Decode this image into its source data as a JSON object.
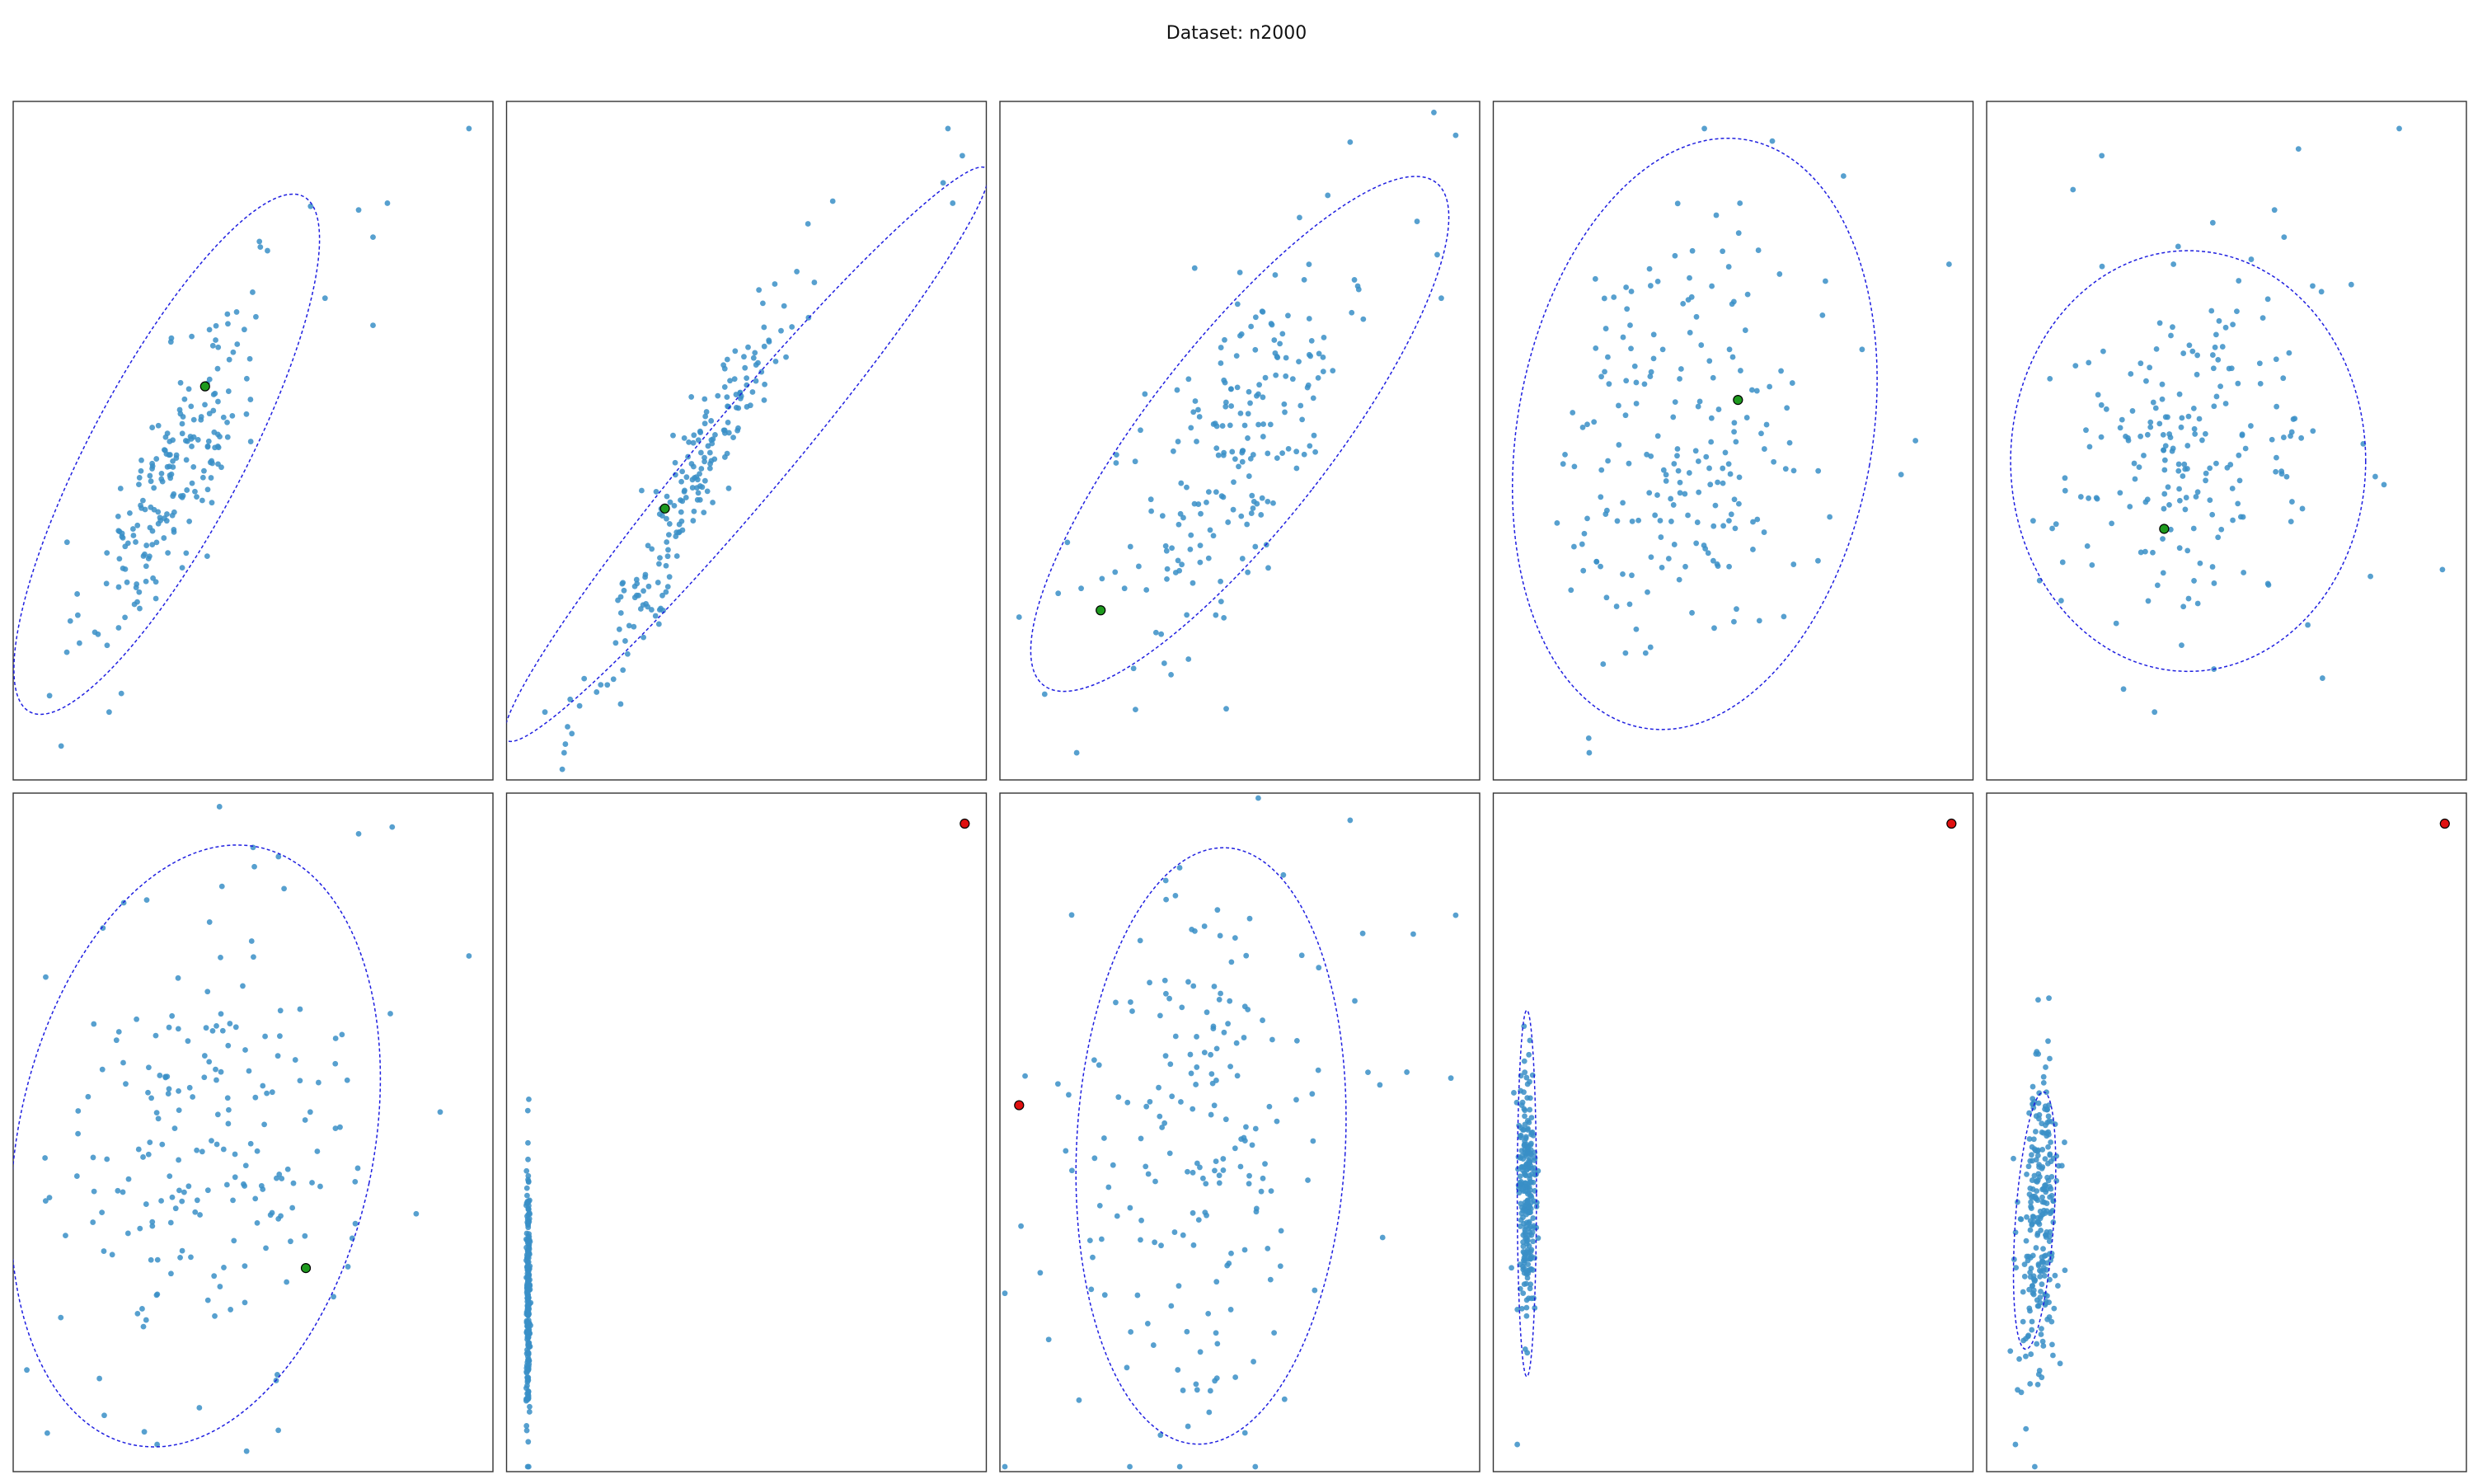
{
  "title": "Dataset: n2000",
  "colors": {
    "points": "#3a8fc7",
    "ellipse": "#1f1fe0",
    "green_marker": "#1e9a1e",
    "red_marker": "#e01010",
    "axes_border": "#333333"
  },
  "chart_data": [
    {
      "type": "scatter",
      "xlim": [
        0,
        1
      ],
      "ylim": [
        0,
        1
      ],
      "cluster": {
        "cx": 0.33,
        "cy": 0.45,
        "sx": 0.09,
        "sy": 0.13,
        "rho": 0.8,
        "n": 200
      },
      "outliers": [
        [
          0.95,
          0.96
        ],
        [
          0.75,
          0.8
        ],
        [
          0.78,
          0.85
        ],
        [
          0.72,
          0.84
        ],
        [
          0.53,
          0.78
        ],
        [
          0.65,
          0.71
        ],
        [
          0.75,
          0.67
        ],
        [
          0.1,
          0.05
        ],
        [
          0.2,
          0.1
        ]
      ],
      "ellipse": {
        "cx": 0.32,
        "cy": 0.48,
        "rx": 0.16,
        "ry": 0.43,
        "angle_deg": 28
      },
      "highlight": {
        "x": 0.4,
        "y": 0.58,
        "color": "green"
      }
    },
    {
      "type": "scatter",
      "xlim": [
        0,
        1
      ],
      "ylim": [
        0,
        1
      ],
      "cluster": {
        "cx": 0.4,
        "cy": 0.45,
        "sx": 0.11,
        "sy": 0.16,
        "rho": 0.95,
        "n": 200
      },
      "outliers": [
        [
          0.92,
          0.96
        ],
        [
          0.95,
          0.92
        ],
        [
          0.91,
          0.88
        ],
        [
          0.93,
          0.85
        ],
        [
          0.12,
          0.04
        ],
        [
          0.08,
          0.1
        ]
      ],
      "ellipse": {
        "cx": 0.5,
        "cy": 0.48,
        "rx": 0.09,
        "ry": 0.55,
        "angle_deg": 40
      },
      "highlight": {
        "x": 0.33,
        "y": 0.4,
        "color": "green"
      }
    },
    {
      "type": "scatter",
      "xlim": [
        0,
        1
      ],
      "ylim": [
        0,
        1
      ],
      "cluster": {
        "cx": 0.5,
        "cy": 0.5,
        "sx": 0.14,
        "sy": 0.17,
        "rho": 0.75,
        "n": 200
      },
      "outliers": [
        [
          0.95,
          0.95
        ],
        [
          0.73,
          0.94
        ],
        [
          0.92,
          0.71
        ],
        [
          0.04,
          0.24
        ],
        [
          0.16,
          0.04
        ]
      ],
      "ellipse": {
        "cx": 0.5,
        "cy": 0.51,
        "rx": 0.19,
        "ry": 0.47,
        "angle_deg": 38
      },
      "highlight": {
        "x": 0.21,
        "y": 0.25,
        "color": "green"
      }
    },
    {
      "type": "scatter",
      "xlim": [
        0,
        1
      ],
      "ylim": [
        0,
        1
      ],
      "cluster": {
        "cx": 0.4,
        "cy": 0.5,
        "sx": 0.13,
        "sy": 0.16,
        "rho": 0.2,
        "n": 200
      },
      "outliers": [
        [
          0.44,
          0.96
        ],
        [
          0.73,
          0.89
        ],
        [
          0.95,
          0.76
        ],
        [
          0.85,
          0.45
        ],
        [
          0.88,
          0.5
        ],
        [
          0.2,
          0.04
        ]
      ],
      "ellipse": {
        "cx": 0.42,
        "cy": 0.51,
        "rx": 0.37,
        "ry": 0.44,
        "angle_deg": 10
      },
      "highlight": {
        "x": 0.51,
        "y": 0.56,
        "color": "green"
      }
    },
    {
      "type": "scatter",
      "xlim": [
        0,
        1
      ],
      "ylim": [
        0,
        1
      ],
      "cluster": {
        "cx": 0.42,
        "cy": 0.48,
        "sx": 0.14,
        "sy": 0.12,
        "rho": 0.1,
        "n": 200
      },
      "outliers": [
        [
          0.86,
          0.96
        ],
        [
          0.65,
          0.93
        ],
        [
          0.24,
          0.92
        ],
        [
          0.18,
          0.87
        ],
        [
          0.6,
          0.84
        ],
        [
          0.62,
          0.8
        ],
        [
          0.76,
          0.73
        ],
        [
          0.95,
          0.31
        ],
        [
          0.8,
          0.3
        ],
        [
          0.35,
          0.1
        ],
        [
          0.7,
          0.15
        ]
      ],
      "ellipse": {
        "cx": 0.42,
        "cy": 0.47,
        "rx": 0.37,
        "ry": 0.31,
        "angle_deg": 0
      },
      "highlight": {
        "x": 0.37,
        "y": 0.37,
        "color": "green"
      }
    },
    {
      "type": "scatter",
      "xlim": [
        0,
        1
      ],
      "ylim": [
        0,
        1
      ],
      "cluster": {
        "cx": 0.4,
        "cy": 0.48,
        "sx": 0.15,
        "sy": 0.17,
        "rho": 0.1,
        "n": 200
      },
      "outliers": [
        [
          0.95,
          0.76
        ],
        [
          0.89,
          0.53
        ],
        [
          0.79,
          0.95
        ],
        [
          0.72,
          0.94
        ],
        [
          0.5,
          0.92
        ],
        [
          0.43,
          0.98
        ],
        [
          0.3,
          0.04
        ],
        [
          0.84,
          0.38
        ]
      ],
      "ellipse": {
        "cx": 0.38,
        "cy": 0.48,
        "rx": 0.37,
        "ry": 0.45,
        "angle_deg": 12
      },
      "highlight": {
        "x": 0.61,
        "y": 0.3,
        "color": "green"
      }
    },
    {
      "type": "scatter",
      "xlim": [
        0,
        1
      ],
      "ylim": [
        0,
        1
      ],
      "cluster": {
        "cx": 0.045,
        "cy": 0.25,
        "sx": 0.002,
        "sy": 0.09,
        "rho": 0,
        "n": 250
      },
      "outliers": [],
      "ellipse": null,
      "highlight": {
        "x": 0.955,
        "y": 0.955,
        "color": "red"
      }
    },
    {
      "type": "scatter",
      "xlim": [
        0,
        1
      ],
      "ylim": [
        0,
        1
      ],
      "cluster": {
        "cx": 0.42,
        "cy": 0.48,
        "sx": 0.14,
        "sy": 0.2,
        "rho": 0.05,
        "n": 200
      },
      "outliers": [
        [
          0.95,
          0.82
        ],
        [
          0.94,
          0.58
        ],
        [
          0.73,
          0.96
        ]
      ],
      "ellipse": {
        "cx": 0.44,
        "cy": 0.48,
        "rx": 0.28,
        "ry": 0.44,
        "angle_deg": 3
      },
      "highlight": {
        "x": 0.04,
        "y": 0.54,
        "color": "red"
      }
    },
    {
      "type": "scatter",
      "xlim": [
        0,
        1
      ],
      "ylim": [
        0,
        1
      ],
      "cluster": {
        "cx": 0.07,
        "cy": 0.4,
        "sx": 0.01,
        "sy": 0.1,
        "rho": 0,
        "n": 250
      },
      "outliers": [
        [
          0.05,
          0.04
        ]
      ],
      "ellipse": {
        "cx": 0.07,
        "cy": 0.41,
        "rx": 0.02,
        "ry": 0.27,
        "angle_deg": 0
      },
      "highlight": {
        "x": 0.955,
        "y": 0.955,
        "color": "red"
      }
    },
    {
      "type": "scatter",
      "xlim": [
        0,
        1
      ],
      "ylim": [
        0,
        1
      ],
      "cluster": {
        "cx": 0.11,
        "cy": 0.37,
        "sx": 0.02,
        "sy": 0.12,
        "rho": 0.2,
        "n": 250
      },
      "outliers": [
        [
          0.06,
          0.04
        ]
      ],
      "ellipse": {
        "cx": 0.1,
        "cy": 0.37,
        "rx": 0.04,
        "ry": 0.19,
        "angle_deg": 4
      },
      "highlight": {
        "x": 0.955,
        "y": 0.955,
        "color": "red"
      }
    }
  ]
}
